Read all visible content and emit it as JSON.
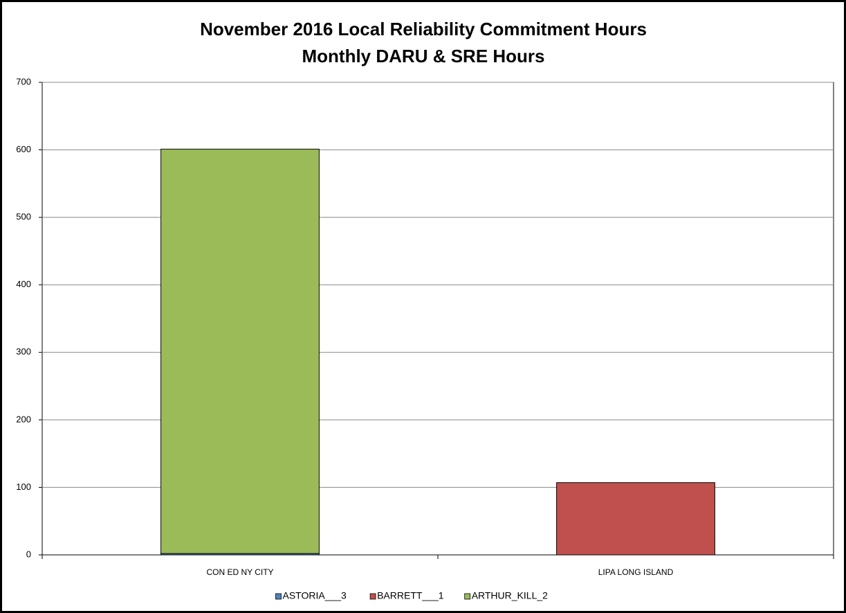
{
  "chart_data": {
    "type": "stacked_bar",
    "title": "November 2016 Local Reliability Commitment Hours",
    "subtitle": "Monthly DARU & SRE Hours",
    "categories": [
      "CON ED NY CITY",
      "LIPA LONG ISLAND"
    ],
    "series": [
      {
        "name": "ASTORIA___3",
        "color": "#4f81bd",
        "values": [
          2,
          0
        ]
      },
      {
        "name": "BARRETT___1",
        "color": "#c0504d",
        "values": [
          0,
          107
        ]
      },
      {
        "name": "ARTHUR_KILL_2",
        "color": "#9bbb59",
        "values": [
          599,
          0
        ]
      }
    ],
    "ylim": [
      0,
      700
    ],
    "yticks": [
      0,
      100,
      200,
      300,
      400,
      500,
      600,
      700
    ],
    "grid": true,
    "legend": "bottom"
  }
}
